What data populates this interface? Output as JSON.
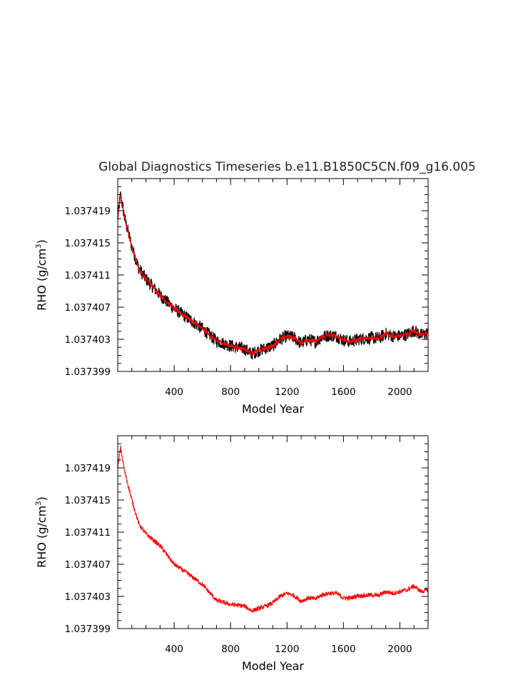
{
  "chart_data": [
    {
      "type": "line",
      "title": "Global Diagnostics Timeseries b.e11.B1850C5CN.f09_g16.005",
      "xlabel": "Model Year",
      "ylabel": "RHO (g/cm",
      "ylabel_sup": "3",
      "ylabel_close": ")",
      "xlim": [
        0,
        2200
      ],
      "ylim": [
        1.037399,
        1.037423
      ],
      "xticks": [
        400,
        800,
        1200,
        1600,
        2000
      ],
      "xtick_labels": [
        "400",
        "800",
        "1200",
        "1600",
        "2000"
      ],
      "yticks": [
        1.037399,
        1.037403,
        1.037407,
        1.037411,
        1.037415,
        1.037419
      ],
      "ytick_labels": [
        "1.037399",
        "1.037403",
        "1.037407",
        "1.037411",
        "1.037415",
        "1.037419"
      ],
      "grid": false,
      "series": [
        {
          "role": "monthly",
          "color": "#000000",
          "band_half_width": 8e-07,
          "x": [
            0,
            20,
            50,
            100,
            150,
            200,
            300,
            400,
            500,
            600,
            700,
            800,
            900,
            950,
            1000,
            1050,
            1100,
            1150,
            1200,
            1250,
            1300,
            1350,
            1400,
            1450,
            1500,
            1550,
            1600,
            1650,
            1700,
            1750,
            1800,
            1850,
            1900,
            1950,
            2000,
            2050,
            2100,
            2150,
            2200
          ],
          "y": [
            1.037418,
            1.037421,
            1.037418,
            1.0374145,
            1.0374118,
            1.0374105,
            1.0374085,
            1.0374068,
            1.0374056,
            1.0374043,
            1.0374028,
            1.0374022,
            1.0374018,
            1.0374012,
            1.0374016,
            1.0374019,
            1.0374022,
            1.037403,
            1.0374034,
            1.0374032,
            1.0374025,
            1.037403,
            1.0374027,
            1.0374033,
            1.0374035,
            1.0374034,
            1.0374029,
            1.0374027,
            1.037403,
            1.0374031,
            1.0374032,
            1.0374031,
            1.0374037,
            1.0374034,
            1.0374034,
            1.0374036,
            1.0374041,
            1.0374035,
            1.0374038
          ]
        },
        {
          "role": "annual",
          "color": "#ff0000",
          "x": [
            0,
            20,
            50,
            100,
            150,
            200,
            300,
            400,
            500,
            600,
            700,
            800,
            900,
            950,
            1000,
            1050,
            1100,
            1150,
            1200,
            1250,
            1300,
            1350,
            1400,
            1450,
            1500,
            1550,
            1600,
            1650,
            1700,
            1750,
            1800,
            1850,
            1900,
            1950,
            2000,
            2050,
            2100,
            2150,
            2200
          ],
          "y": [
            1.037418,
            1.037421,
            1.037418,
            1.0374145,
            1.0374118,
            1.0374105,
            1.0374085,
            1.0374068,
            1.0374056,
            1.0374043,
            1.0374028,
            1.0374022,
            1.0374018,
            1.0374012,
            1.0374016,
            1.0374019,
            1.0374022,
            1.037403,
            1.0374034,
            1.0374032,
            1.0374025,
            1.037403,
            1.0374027,
            1.0374033,
            1.0374035,
            1.0374034,
            1.0374029,
            1.0374027,
            1.037403,
            1.0374031,
            1.0374032,
            1.0374031,
            1.0374037,
            1.0374034,
            1.0374034,
            1.0374036,
            1.0374041,
            1.0374035,
            1.0374038
          ]
        }
      ]
    },
    {
      "type": "line",
      "title": "",
      "xlabel": "Model Year",
      "ylabel": "RHO (g/cm",
      "ylabel_sup": "3",
      "ylabel_close": ")",
      "xlim": [
        0,
        2200
      ],
      "ylim": [
        1.037399,
        1.037423
      ],
      "xticks": [
        400,
        800,
        1200,
        1600,
        2000
      ],
      "xtick_labels": [
        "400",
        "800",
        "1200",
        "1600",
        "2000"
      ],
      "yticks": [
        1.037399,
        1.037403,
        1.037407,
        1.037411,
        1.037415,
        1.037419
      ],
      "ytick_labels": [
        "1.037399",
        "1.037403",
        "1.037407",
        "1.037411",
        "1.037415",
        "1.037419"
      ],
      "grid": false,
      "series": [
        {
          "role": "annual",
          "color": "#ff0000",
          "x": [
            0,
            20,
            50,
            100,
            150,
            200,
            300,
            400,
            500,
            600,
            700,
            800,
            900,
            950,
            1000,
            1050,
            1100,
            1150,
            1200,
            1250,
            1300,
            1350,
            1400,
            1450,
            1500,
            1550,
            1600,
            1650,
            1700,
            1750,
            1800,
            1850,
            1900,
            1950,
            2000,
            2050,
            2100,
            2150,
            2200
          ],
          "y": [
            1.037419,
            1.0374215,
            1.0374185,
            1.037415,
            1.037412,
            1.0374108,
            1.0374093,
            1.037407,
            1.0374058,
            1.0374045,
            1.0374025,
            1.037402,
            1.0374018,
            1.0374012,
            1.0374015,
            1.0374018,
            1.0374022,
            1.037403,
            1.0374034,
            1.0374031,
            1.0374024,
            1.0374028,
            1.0374027,
            1.0374032,
            1.0374034,
            1.0374034,
            1.0374028,
            1.0374028,
            1.0374031,
            1.0374031,
            1.0374032,
            1.0374031,
            1.0374036,
            1.0374034,
            1.0374036,
            1.0374038,
            1.0374043,
            1.0374036,
            1.0374038
          ]
        }
      ]
    }
  ]
}
